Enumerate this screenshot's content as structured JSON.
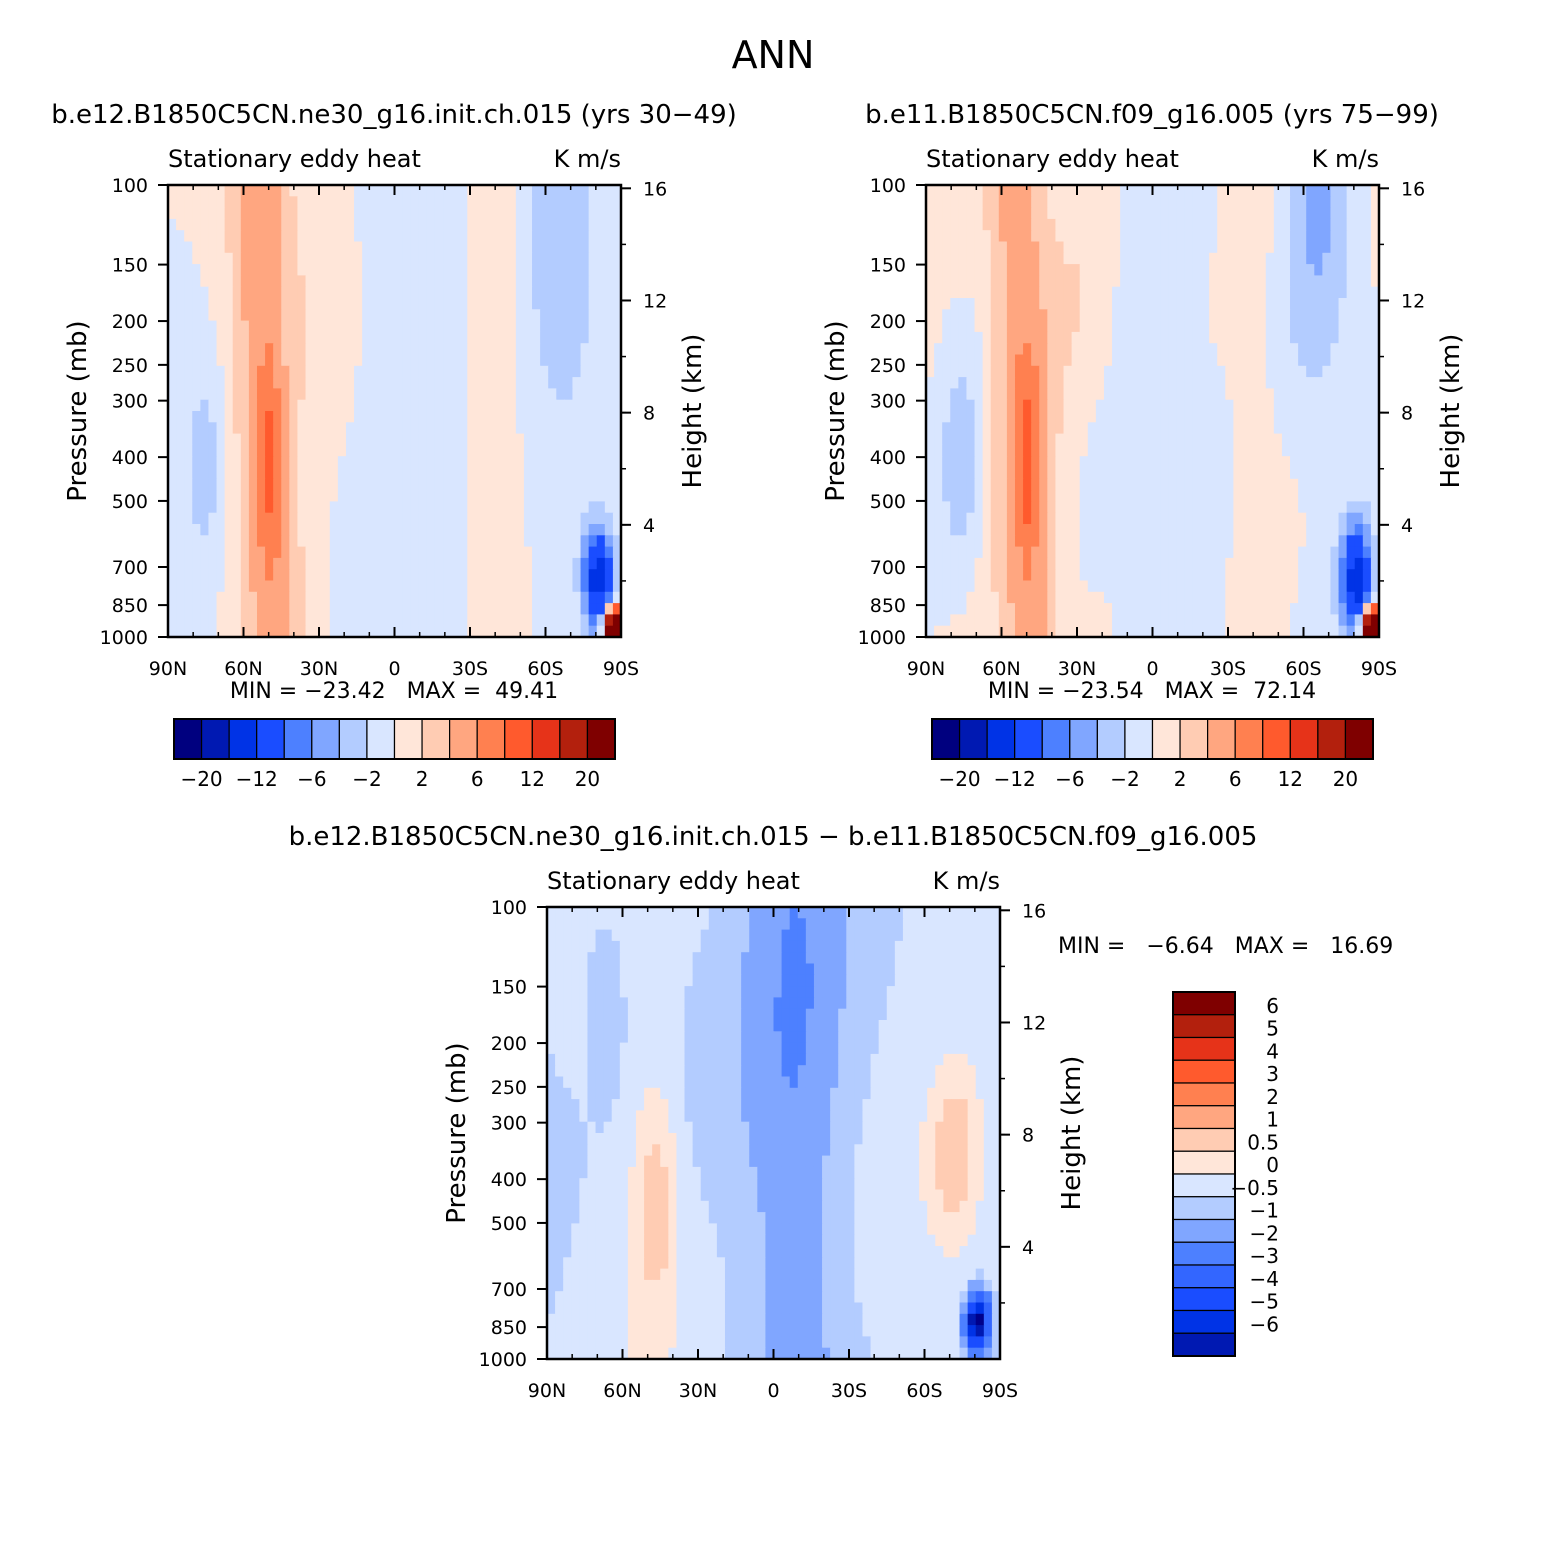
{
  "figure": {
    "title": "ANN"
  },
  "colors": {
    "panel_scale": [
      "#00007f",
      "#0019b2",
      "#0033e6",
      "#1a4dff",
      "#4d80ff",
      "#80a6ff",
      "#b3ccff",
      "#d9e6ff",
      "#ffe6d9",
      "#ffccb3",
      "#ffa680",
      "#ff8050",
      "#ff5a2d",
      "#e63319",
      "#b3200d",
      "#7f0000"
    ],
    "diff_scale": [
      "#00008b",
      "#0019b2",
      "#0033e6",
      "#1a4dff",
      "#3366ff",
      "#4d80ff",
      "#80a6ff",
      "#b3ccff",
      "#d9e6ff",
      "#ffe6d9",
      "#ffccb3",
      "#ffa680",
      "#ff8050",
      "#ff5a2d",
      "#e63319",
      "#b3200d",
      "#7f0000"
    ]
  },
  "chart_data": [
    {
      "type": "heatmap",
      "id": "panel-1",
      "title": "b.e12.B1850C5CN.ne30_g16.init.ch.015 (yrs 30−49)",
      "subtitle_left": "Stationary eddy heat",
      "subtitle_right": "K m/s",
      "ylabel": "Pressure (mb)",
      "y2label": "Height (km)",
      "x_ticks": [
        "90N",
        "60N",
        "30N",
        "0",
        "30S",
        "60S",
        "90S"
      ],
      "y_ticks": [
        "100",
        "150",
        "200",
        "250",
        "300",
        "400",
        "500",
        "700",
        "850",
        "1000"
      ],
      "y_ticks_values": [
        100,
        150,
        200,
        250,
        300,
        400,
        500,
        700,
        850,
        1000
      ],
      "y2_ticks": [
        "16",
        "12",
        "8",
        "4"
      ],
      "y2_ticks_values": [
        16,
        12,
        8,
        4
      ],
      "xlim": [
        90,
        -90
      ],
      "ylim": [
        1000,
        100
      ],
      "y_scale": "log",
      "min_max": "MIN = −23.42   MAX =  49.41",
      "min": -23.42,
      "max": 49.41,
      "colorbar": {
        "orientation": "horizontal",
        "levels": [
          -20,
          -16,
          -12,
          -8,
          -6,
          -4,
          -2,
          0,
          2,
          4,
          6,
          8,
          12,
          16,
          20
        ],
        "labels": [
          "−20",
          "−12",
          "−6",
          "−2",
          "2",
          "6",
          "12",
          "20"
        ]
      }
    },
    {
      "type": "heatmap",
      "id": "panel-2",
      "title": "b.e11.B1850C5CN.f09_g16.005 (yrs 75−99)",
      "subtitle_left": "Stationary eddy heat",
      "subtitle_right": "K m/s",
      "ylabel": "Pressure (mb)",
      "y2label": "Height (km)",
      "x_ticks": [
        "90N",
        "60N",
        "30N",
        "0",
        "30S",
        "60S",
        "90S"
      ],
      "y_ticks": [
        "100",
        "150",
        "200",
        "250",
        "300",
        "400",
        "500",
        "700",
        "850",
        "1000"
      ],
      "y_ticks_values": [
        100,
        150,
        200,
        250,
        300,
        400,
        500,
        700,
        850,
        1000
      ],
      "y2_ticks": [
        "16",
        "12",
        "8",
        "4"
      ],
      "y2_ticks_values": [
        16,
        12,
        8,
        4
      ],
      "xlim": [
        90,
        -90
      ],
      "ylim": [
        1000,
        100
      ],
      "y_scale": "log",
      "min_max": "MIN = −23.54   MAX =  72.14",
      "min": -23.54,
      "max": 72.14,
      "colorbar": {
        "orientation": "horizontal",
        "levels": [
          -20,
          -16,
          -12,
          -8,
          -6,
          -4,
          -2,
          0,
          2,
          4,
          6,
          8,
          12,
          16,
          20
        ],
        "labels": [
          "−20",
          "−12",
          "−6",
          "−2",
          "2",
          "6",
          "12",
          "20"
        ]
      }
    },
    {
      "type": "heatmap",
      "id": "panel-diff",
      "title": "b.e12.B1850C5CN.ne30_g16.init.ch.015 − b.e11.B1850C5CN.f09_g16.005",
      "subtitle_left": "Stationary eddy heat",
      "subtitle_right": "K m/s",
      "ylabel": "Pressure (mb)",
      "y2label": "Height (km)",
      "x_ticks": [
        "90N",
        "60N",
        "30N",
        "0",
        "30S",
        "60S",
        "90S"
      ],
      "y_ticks": [
        "100",
        "150",
        "200",
        "250",
        "300",
        "400",
        "500",
        "700",
        "850",
        "1000"
      ],
      "y_ticks_values": [
        100,
        150,
        200,
        250,
        300,
        400,
        500,
        700,
        850,
        1000
      ],
      "y2_ticks": [
        "16",
        "12",
        "8",
        "4"
      ],
      "y2_ticks_values": [
        16,
        12,
        8,
        4
      ],
      "xlim": [
        90,
        -90
      ],
      "ylim": [
        1000,
        100
      ],
      "y_scale": "log",
      "min_max": "MIN =   −6.64   MAX =   16.69",
      "min": -6.64,
      "max": 16.69,
      "colorbar": {
        "orientation": "vertical",
        "labels": [
          "6",
          "5",
          "4",
          "3",
          "2",
          "1",
          "0.5",
          "0",
          "−0.5",
          "−1",
          "−2",
          "−3",
          "−4",
          "−5",
          "−6"
        ]
      }
    }
  ]
}
